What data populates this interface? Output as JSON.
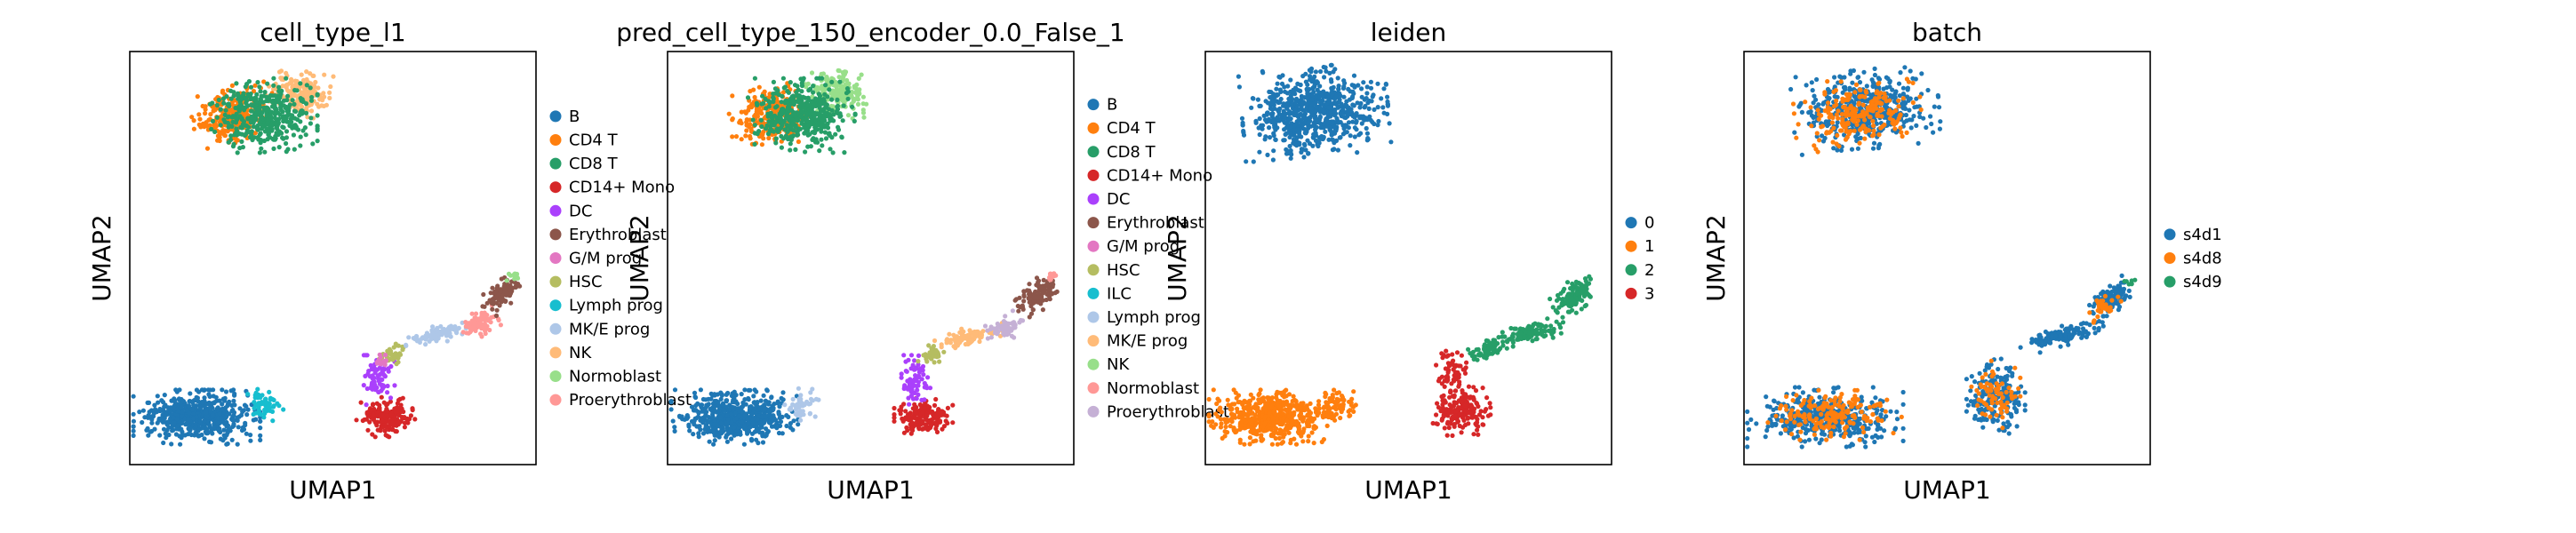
{
  "chart_data": [
    {
      "type": "scatter",
      "title": "cell_type_l1",
      "xlabel": "UMAP1",
      "ylabel": "UMAP2",
      "xticks": false,
      "yticks": false,
      "legend_position": "right",
      "legend": [
        {
          "label": "B",
          "color": "#1f77b4"
        },
        {
          "label": "CD4 T",
          "color": "#ff7f0e"
        },
        {
          "label": "CD8 T",
          "color": "#279e68"
        },
        {
          "label": "CD14+ Mono",
          "color": "#d62728"
        },
        {
          "label": "DC",
          "color": "#aa40fc"
        },
        {
          "label": "Erythroblast",
          "color": "#8c564b"
        },
        {
          "label": "G/M prog",
          "color": "#e377c2"
        },
        {
          "label": "HSC",
          "color": "#b5bd61"
        },
        {
          "label": "Lymph prog",
          "color": "#17becf"
        },
        {
          "label": "MK/E prog",
          "color": "#aec7e8"
        },
        {
          "label": "NK",
          "color": "#ffbb78"
        },
        {
          "label": "Normoblast",
          "color": "#98df8a"
        },
        {
          "label": "Proerythroblast",
          "color": "#ff9896"
        }
      ],
      "clusters": [
        {
          "label": "NK",
          "cx": 0.415,
          "cy": 0.9,
          "rx": 0.065,
          "ry": 0.045,
          "angle": -10,
          "n": 180
        },
        {
          "label": "CD4 T",
          "cx": 0.255,
          "cy": 0.845,
          "rx": 0.085,
          "ry": 0.06,
          "angle": 8,
          "n": 260
        },
        {
          "label": "CD8 T",
          "cx": 0.33,
          "cy": 0.845,
          "rx": 0.11,
          "ry": 0.075,
          "angle": 0,
          "n": 420
        },
        {
          "label": "B",
          "cx": 0.165,
          "cy": 0.115,
          "rx": 0.13,
          "ry": 0.055,
          "angle": 0,
          "n": 560
        },
        {
          "label": "Lymph prog",
          "cx": 0.33,
          "cy": 0.145,
          "rx": 0.04,
          "ry": 0.035,
          "angle": 0,
          "n": 60
        },
        {
          "label": "CD14+ Mono",
          "cx": 0.63,
          "cy": 0.115,
          "rx": 0.06,
          "ry": 0.04,
          "angle": 0,
          "n": 160
        },
        {
          "label": "DC",
          "cx": 0.61,
          "cy": 0.205,
          "rx": 0.035,
          "ry": 0.05,
          "angle": 0,
          "n": 70
        },
        {
          "label": "HSC",
          "cx": 0.65,
          "cy": 0.265,
          "rx": 0.03,
          "ry": 0.02,
          "angle": 30,
          "n": 40
        },
        {
          "label": "MK/E prog",
          "cx": 0.76,
          "cy": 0.315,
          "rx": 0.07,
          "ry": 0.018,
          "angle": 12,
          "n": 90
        },
        {
          "label": "Proerythroblast",
          "cx": 0.86,
          "cy": 0.34,
          "rx": 0.04,
          "ry": 0.025,
          "angle": 25,
          "n": 80
        },
        {
          "label": "Erythroblast",
          "cx": 0.915,
          "cy": 0.41,
          "rx": 0.045,
          "ry": 0.025,
          "angle": 40,
          "n": 100
        },
        {
          "label": "Normoblast",
          "cx": 0.945,
          "cy": 0.455,
          "rx": 0.015,
          "ry": 0.01,
          "angle": 0,
          "n": 15
        },
        {
          "label": "G/M prog",
          "cx": 0.62,
          "cy": 0.25,
          "rx": 0.02,
          "ry": 0.015,
          "angle": 0,
          "n": 15
        }
      ]
    },
    {
      "type": "scatter",
      "title": "pred_cell_type_150_encoder_0.0_False_1",
      "xlabel": "UMAP1",
      "ylabel": "UMAP2",
      "xticks": false,
      "yticks": false,
      "legend_position": "right",
      "legend": [
        {
          "label": "B",
          "color": "#1f77b4"
        },
        {
          "label": "CD4 T",
          "color": "#ff7f0e"
        },
        {
          "label": "CD8 T",
          "color": "#279e68"
        },
        {
          "label": "CD14+ Mono",
          "color": "#d62728"
        },
        {
          "label": "DC",
          "color": "#aa40fc"
        },
        {
          "label": "Erythroblast",
          "color": "#8c564b"
        },
        {
          "label": "G/M prog",
          "color": "#e377c2"
        },
        {
          "label": "HSC",
          "color": "#b5bd61"
        },
        {
          "label": "ILC",
          "color": "#17becf"
        },
        {
          "label": "Lymph prog",
          "color": "#aec7e8"
        },
        {
          "label": "MK/E prog",
          "color": "#ffbb78"
        },
        {
          "label": "NK",
          "color": "#98df8a"
        },
        {
          "label": "Normoblast",
          "color": "#ff9896"
        },
        {
          "label": "Proerythroblast",
          "color": "#c5b0d5"
        }
      ],
      "clusters": [
        {
          "label": "NK",
          "cx": 0.415,
          "cy": 0.9,
          "rx": 0.065,
          "ry": 0.045,
          "angle": -10,
          "n": 180
        },
        {
          "label": "CD4 T",
          "cx": 0.255,
          "cy": 0.845,
          "rx": 0.085,
          "ry": 0.06,
          "angle": 8,
          "n": 260
        },
        {
          "label": "CD8 T",
          "cx": 0.33,
          "cy": 0.845,
          "rx": 0.11,
          "ry": 0.075,
          "angle": 0,
          "n": 420
        },
        {
          "label": "B",
          "cx": 0.165,
          "cy": 0.115,
          "rx": 0.13,
          "ry": 0.055,
          "angle": 0,
          "n": 560
        },
        {
          "label": "Lymph prog",
          "cx": 0.33,
          "cy": 0.145,
          "rx": 0.035,
          "ry": 0.035,
          "angle": 0,
          "n": 50
        },
        {
          "label": "CD14+ Mono",
          "cx": 0.63,
          "cy": 0.115,
          "rx": 0.06,
          "ry": 0.04,
          "angle": 0,
          "n": 160
        },
        {
          "label": "DC",
          "cx": 0.61,
          "cy": 0.205,
          "rx": 0.035,
          "ry": 0.05,
          "angle": 0,
          "n": 70
        },
        {
          "label": "HSC",
          "cx": 0.65,
          "cy": 0.265,
          "rx": 0.03,
          "ry": 0.02,
          "angle": 30,
          "n": 40
        },
        {
          "label": "MK/E prog",
          "cx": 0.74,
          "cy": 0.31,
          "rx": 0.08,
          "ry": 0.018,
          "angle": 12,
          "n": 100
        },
        {
          "label": "Proerythroblast",
          "cx": 0.83,
          "cy": 0.33,
          "rx": 0.04,
          "ry": 0.025,
          "angle": 25,
          "n": 70
        },
        {
          "label": "Erythroblast",
          "cx": 0.91,
          "cy": 0.41,
          "rx": 0.05,
          "ry": 0.03,
          "angle": 40,
          "n": 110
        },
        {
          "label": "Normoblast",
          "cx": 0.945,
          "cy": 0.455,
          "rx": 0.015,
          "ry": 0.01,
          "angle": 0,
          "n": 12
        }
      ]
    },
    {
      "type": "scatter",
      "title": "leiden",
      "xlabel": "UMAP1",
      "ylabel": "UMAP2",
      "xticks": false,
      "yticks": false,
      "legend_position": "right",
      "legend": [
        {
          "label": "0",
          "color": "#1f77b4"
        },
        {
          "label": "1",
          "color": "#ff7f0e"
        },
        {
          "label": "2",
          "color": "#279e68"
        },
        {
          "label": "3",
          "color": "#d62728"
        }
      ],
      "clusters": [
        {
          "label": "0",
          "cx": 0.27,
          "cy": 0.855,
          "rx": 0.15,
          "ry": 0.09,
          "angle": 5,
          "n": 700
        },
        {
          "label": "1",
          "cx": 0.165,
          "cy": 0.115,
          "rx": 0.13,
          "ry": 0.055,
          "angle": 0,
          "n": 560
        },
        {
          "label": "1",
          "cx": 0.33,
          "cy": 0.145,
          "rx": 0.04,
          "ry": 0.035,
          "angle": 0,
          "n": 60
        },
        {
          "label": "3",
          "cx": 0.63,
          "cy": 0.13,
          "rx": 0.06,
          "ry": 0.05,
          "angle": 0,
          "n": 180
        },
        {
          "label": "3",
          "cx": 0.61,
          "cy": 0.215,
          "rx": 0.035,
          "ry": 0.05,
          "angle": 0,
          "n": 70
        },
        {
          "label": "2",
          "cx": 0.7,
          "cy": 0.28,
          "rx": 0.05,
          "ry": 0.018,
          "angle": 20,
          "n": 70
        },
        {
          "label": "2",
          "cx": 0.8,
          "cy": 0.32,
          "rx": 0.07,
          "ry": 0.02,
          "angle": 12,
          "n": 110
        },
        {
          "label": "2",
          "cx": 0.91,
          "cy": 0.41,
          "rx": 0.05,
          "ry": 0.03,
          "angle": 40,
          "n": 130
        }
      ]
    },
    {
      "type": "scatter",
      "title": "batch",
      "xlabel": "UMAP1",
      "ylabel": "UMAP2",
      "xticks": false,
      "yticks": false,
      "legend_position": "right",
      "legend": [
        {
          "label": "s4d1",
          "color": "#1f77b4"
        },
        {
          "label": "s4d8",
          "color": "#ff7f0e"
        },
        {
          "label": "s4d9",
          "color": "#279e68"
        }
      ],
      "clusters": [
        {
          "label": "s4d1",
          "cx": 0.3,
          "cy": 0.86,
          "rx": 0.15,
          "ry": 0.08,
          "angle": 5,
          "n": 480
        },
        {
          "label": "s4d8",
          "cx": 0.28,
          "cy": 0.85,
          "rx": 0.13,
          "ry": 0.07,
          "angle": 5,
          "n": 220
        },
        {
          "label": "s4d1",
          "cx": 0.2,
          "cy": 0.115,
          "rx": 0.16,
          "ry": 0.06,
          "angle": 0,
          "n": 420
        },
        {
          "label": "s4d8",
          "cx": 0.22,
          "cy": 0.12,
          "rx": 0.14,
          "ry": 0.05,
          "angle": 0,
          "n": 180
        },
        {
          "label": "s4d1",
          "cx": 0.62,
          "cy": 0.16,
          "rx": 0.06,
          "ry": 0.08,
          "angle": 0,
          "n": 200
        },
        {
          "label": "s4d8",
          "cx": 0.62,
          "cy": 0.17,
          "rx": 0.05,
          "ry": 0.07,
          "angle": 0,
          "n": 70
        },
        {
          "label": "s4d1",
          "cx": 0.78,
          "cy": 0.31,
          "rx": 0.09,
          "ry": 0.02,
          "angle": 15,
          "n": 130
        },
        {
          "label": "s4d1",
          "cx": 0.9,
          "cy": 0.4,
          "rx": 0.05,
          "ry": 0.03,
          "angle": 40,
          "n": 110
        },
        {
          "label": "s4d8",
          "cx": 0.88,
          "cy": 0.38,
          "rx": 0.04,
          "ry": 0.02,
          "angle": 40,
          "n": 30
        },
        {
          "label": "s4d9",
          "cx": 0.95,
          "cy": 0.44,
          "rx": 0.02,
          "ry": 0.01,
          "angle": 0,
          "n": 6
        }
      ]
    }
  ]
}
